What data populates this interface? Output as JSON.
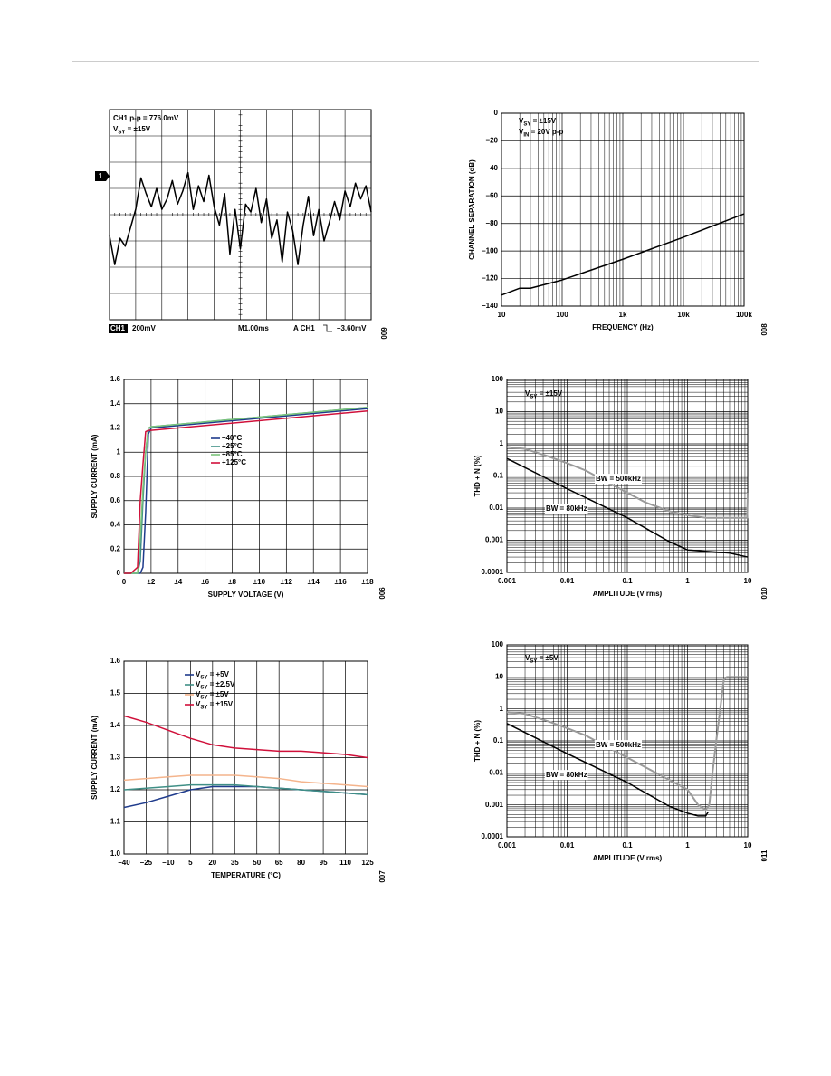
{
  "chart_data": [
    {
      "type": "line",
      "annotations": [
        "CH1 p-p = 776.0mV",
        "VSY = ±15V"
      ],
      "marker_label": "1",
      "footer": [
        "CH1",
        "200mV",
        "M1.00ms",
        "A CH1",
        "–3.60mV"
      ],
      "figure": "009",
      "xlim": [
        0,
        10
      ],
      "ylim": [
        -4,
        4
      ],
      "grid": "scope",
      "series": [
        {
          "color": "#000000",
          "x": [
            0,
            0.2,
            0.4,
            0.6,
            0.8,
            1,
            1.2,
            1.4,
            1.6,
            1.8,
            2,
            2.2,
            2.4,
            2.6,
            2.8,
            3,
            3.2,
            3.4,
            3.6,
            3.8,
            4,
            4.2,
            4.4,
            4.6,
            4.8,
            5,
            5.2,
            5.4,
            5.6,
            5.8,
            6,
            6.2,
            6.4,
            6.6,
            6.8,
            7,
            7.2,
            7.4,
            7.6,
            7.8,
            8,
            8.2,
            8.4,
            8.6,
            8.8,
            9,
            9.2,
            9.4,
            9.6,
            9.8,
            10
          ],
          "values": [
            -0.8,
            -1.9,
            -0.9,
            -1.2,
            -0.5,
            0.2,
            1.4,
            0.8,
            0.3,
            1.0,
            0.2,
            0.6,
            1.3,
            0.4,
            0.9,
            1.6,
            0.2,
            1.1,
            0.5,
            1.5,
            0.3,
            -0.4,
            0.8,
            -1.5,
            0.2,
            -1.3,
            0.4,
            0.1,
            1.0,
            -0.3,
            0.6,
            -0.9,
            -0.2,
            -1.8,
            0.1,
            -0.6,
            -1.9,
            -0.4,
            0.7,
            -0.8,
            0.2,
            -1.0,
            -0.3,
            0.5,
            -0.2,
            0.9,
            0.3,
            1.2,
            0.6,
            1.1,
            0.1
          ]
        }
      ]
    },
    {
      "type": "line",
      "annotations": [
        "VSY = ±15V",
        "VIN = 20V p-p"
      ],
      "xlabel": "FREQUENCY (Hz)",
      "ylabel": "CHANNEL SEPARATION (dB)",
      "figure": "008",
      "xscale": "log",
      "xlim": [
        10,
        100000
      ],
      "ylim": [
        -140,
        0
      ],
      "grid": true,
      "xticks": [
        10,
        100,
        {
          "value": 1000,
          "label": "1k"
        },
        {
          "value": 10000,
          "label": "10k"
        },
        {
          "value": 100000,
          "label": "100k"
        }
      ],
      "yticks": [
        {
          "value": -140,
          "label": "–140"
        },
        {
          "value": -120,
          "label": "–120"
        },
        {
          "value": -100,
          "label": "–100"
        },
        {
          "value": -80,
          "label": "–80"
        },
        {
          "value": -60,
          "label": "–60"
        },
        {
          "value": -40,
          "label": "–40"
        },
        {
          "value": -20,
          "label": "–20"
        },
        0
      ],
      "series": [
        {
          "color": "#000000",
          "x": [
            10,
            20,
            30,
            100,
            1000,
            10000,
            100000
          ],
          "values": [
            -132,
            -127,
            -127,
            -121,
            -106,
            -90,
            -73
          ]
        }
      ]
    },
    {
      "type": "line",
      "xlabel": "SUPPLY VOLTAGE (V)",
      "ylabel": "SUPPLY CURRENT (mA)",
      "figure": "006",
      "legend": true,
      "xlim": [
        0,
        18
      ],
      "ylim": [
        0,
        1.6
      ],
      "grid": true,
      "xticks": [
        0,
        {
          "value": 2,
          "label": "±2"
        },
        {
          "value": 4,
          "label": "±4"
        },
        {
          "value": 6,
          "label": "±6"
        },
        {
          "value": 8,
          "label": "±8"
        },
        {
          "value": 10,
          "label": "±10"
        },
        {
          "value": 12,
          "label": "±12"
        },
        {
          "value": 14,
          "label": "±14"
        },
        {
          "value": 16,
          "label": "±16"
        },
        {
          "value": 18,
          "label": "±18"
        }
      ],
      "yticks": [
        0,
        0.2,
        0.4,
        0.6,
        0.8,
        1,
        1.2,
        1.4,
        1.6
      ],
      "series": [
        {
          "name": "–40°C",
          "color": "#1f3b8c",
          "x": [
            0,
            0.5,
            1,
            1.2,
            1.4,
            1.6,
            1.8,
            2,
            18
          ],
          "values": [
            0,
            0,
            0,
            0,
            0.05,
            0.5,
            1.15,
            1.2,
            1.36
          ]
        },
        {
          "name": "+25°C",
          "color": "#3f8f86",
          "x": [
            0,
            0.5,
            1,
            1.2,
            1.4,
            1.6,
            1.8,
            2,
            18
          ],
          "values": [
            0,
            0,
            0,
            0.1,
            0.6,
            1.0,
            1.2,
            1.21,
            1.37
          ]
        },
        {
          "name": "+85°C",
          "color": "#7cc47c",
          "x": [
            0,
            0.5,
            1,
            1.2,
            1.4,
            1.6,
            1.8,
            2,
            18
          ],
          "values": [
            0,
            0,
            0,
            0.3,
            0.7,
            1.0,
            1.2,
            1.21,
            1.37
          ]
        },
        {
          "name": "+125°C",
          "color": "#d0103a",
          "x": [
            0,
            0.5,
            1,
            1.2,
            1.4,
            1.6,
            1.8,
            2,
            18
          ],
          "values": [
            0,
            0,
            0.05,
            0.6,
            0.9,
            1.17,
            1.18,
            1.18,
            1.34
          ]
        }
      ]
    },
    {
      "type": "line",
      "annotations": [
        "VSY = ±15V"
      ],
      "xlabel": "AMPLITUDE (V rms)",
      "ylabel": "THD + N (%)",
      "figure": "010",
      "legend": "inline",
      "xscale": "log",
      "yscale": "log",
      "xlim": [
        0.001,
        10
      ],
      "ylim": [
        0.0001,
        100
      ],
      "grid": true,
      "xticks": [
        0.001,
        0.01,
        0.1,
        1,
        10
      ],
      "yticks": [
        0.0001,
        0.001,
        0.01,
        0.1,
        1,
        10,
        100
      ],
      "series": [
        {
          "name": "BW = 500kHz",
          "color": "#9a9a9a",
          "x": [
            0.001,
            0.002,
            0.005,
            0.01,
            0.02,
            0.05,
            0.1,
            0.2,
            0.5,
            1,
            2,
            5,
            9.8,
            10
          ],
          "values": [
            0.8,
            0.7,
            0.4,
            0.25,
            0.15,
            0.06,
            0.03,
            0.015,
            0.008,
            0.006,
            0.005,
            0.005,
            0.005,
            0.03
          ]
        },
        {
          "name": "BW = 80kHz",
          "color": "#000000",
          "x": [
            0.001,
            0.01,
            0.1,
            0.5,
            1,
            2,
            5,
            10
          ],
          "values": [
            0.35,
            0.04,
            0.005,
            0.0009,
            0.0005,
            0.00045,
            0.0004,
            0.0003
          ]
        }
      ]
    },
    {
      "type": "line",
      "xlabel": "TEMPERATURE (°C)",
      "ylabel": "SUPPLY CURRENT (mA)",
      "figure": "007",
      "legend": true,
      "xlim": [
        -40,
        125
      ],
      "ylim": [
        1.0,
        1.6
      ],
      "grid": true,
      "xticks": [
        {
          "value": -40,
          "label": "–40"
        },
        {
          "value": -25,
          "label": "–25"
        },
        {
          "value": -10,
          "label": "–10"
        },
        5,
        20,
        35,
        50,
        65,
        80,
        95,
        110,
        125
      ],
      "yticks": [
        {
          "value": 1,
          "label": "1.0"
        },
        1.1,
        1.2,
        1.3,
        1.4,
        1.5,
        1.6
      ],
      "series": [
        {
          "name": "VSY = +5V",
          "color": "#1f3b8c",
          "x": [
            -40,
            -25,
            -10,
            5,
            20,
            35,
            50,
            65,
            80,
            95,
            110,
            125
          ],
          "values": [
            1.145,
            1.16,
            1.18,
            1.2,
            1.21,
            1.21,
            1.21,
            1.205,
            1.2,
            1.195,
            1.19,
            1.185
          ]
        },
        {
          "name": "VSY = ±2.5V",
          "color": "#3f8f86",
          "x": [
            -40,
            -25,
            -10,
            5,
            20,
            35,
            50,
            65,
            80,
            95,
            110,
            125
          ],
          "values": [
            1.2,
            1.205,
            1.21,
            1.215,
            1.215,
            1.215,
            1.21,
            1.205,
            1.2,
            1.195,
            1.19,
            1.185
          ]
        },
        {
          "name": "VSY = ±5V",
          "color": "#f4b48c",
          "x": [
            -40,
            -25,
            -10,
            5,
            20,
            35,
            50,
            65,
            80,
            95,
            110,
            125
          ],
          "values": [
            1.23,
            1.235,
            1.24,
            1.245,
            1.245,
            1.245,
            1.24,
            1.235,
            1.225,
            1.22,
            1.215,
            1.21
          ]
        },
        {
          "name": "VSY = ±15V",
          "color": "#d0103a",
          "x": [
            -40,
            -25,
            -10,
            5,
            20,
            35,
            50,
            65,
            80,
            95,
            110,
            125
          ],
          "values": [
            1.43,
            1.41,
            1.385,
            1.36,
            1.34,
            1.33,
            1.325,
            1.32,
            1.32,
            1.315,
            1.31,
            1.3
          ]
        }
      ]
    },
    {
      "type": "line",
      "annotations": [
        "VSY = ±5V"
      ],
      "xlabel": "AMPLITUDE (V rms)",
      "ylabel": "THD + N (%)",
      "figure": "011",
      "legend": "inline",
      "xscale": "log",
      "yscale": "log",
      "xlim": [
        0.001,
        10
      ],
      "ylim": [
        0.0001,
        100
      ],
      "grid": true,
      "xticks": [
        0.001,
        0.01,
        0.1,
        1,
        10
      ],
      "yticks": [
        0.0001,
        0.001,
        0.01,
        0.1,
        1,
        10,
        100
      ],
      "series": [
        {
          "name": "BW = 500kHz",
          "color": "#9a9a9a",
          "x": [
            0.001,
            0.002,
            0.005,
            0.01,
            0.02,
            0.05,
            0.1,
            0.2,
            0.5,
            1,
            1.5,
            2,
            2.3,
            2.6,
            3,
            3.5,
            4,
            4.5,
            10
          ],
          "values": [
            0.8,
            0.7,
            0.4,
            0.25,
            0.15,
            0.06,
            0.03,
            0.015,
            0.006,
            0.003,
            0.001,
            0.0007,
            0.001,
            0.01,
            0.1,
            1,
            8,
            10,
            10
          ]
        },
        {
          "name": "BW = 80kHz",
          "color": "#000000",
          "x": [
            0.001,
            0.01,
            0.1,
            0.5,
            1,
            1.5,
            2,
            2.2
          ],
          "values": [
            0.35,
            0.04,
            0.005,
            0.0009,
            0.00055,
            0.00045,
            0.00045,
            0.0006
          ]
        }
      ]
    }
  ]
}
